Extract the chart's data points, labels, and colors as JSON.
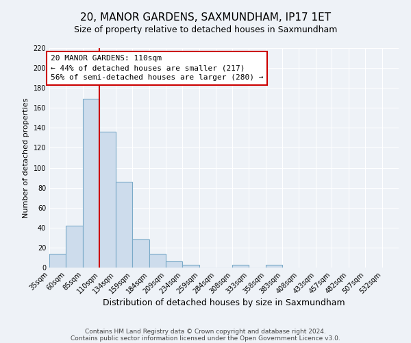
{
  "title": "20, MANOR GARDENS, SAXMUNDHAM, IP17 1ET",
  "subtitle": "Size of property relative to detached houses in Saxmundham",
  "xlabel": "Distribution of detached houses by size in Saxmundham",
  "ylabel": "Number of detached properties",
  "bar_values": [
    14,
    42,
    169,
    136,
    86,
    28,
    14,
    6,
    3,
    0,
    0,
    3,
    0,
    3
  ],
  "bin_edges_bars": [
    35,
    60,
    85,
    110,
    134,
    159,
    184,
    209,
    234,
    259,
    284,
    308,
    333,
    358
  ],
  "all_tick_positions": [
    35,
    60,
    85,
    110,
    134,
    159,
    184,
    209,
    234,
    259,
    284,
    308,
    333,
    358,
    383,
    408,
    433,
    457,
    482,
    507,
    532
  ],
  "tick_labels": [
    "35sqm",
    "60sqm",
    "85sqm",
    "110sqm",
    "134sqm",
    "159sqm",
    "184sqm",
    "209sqm",
    "234sqm",
    "259sqm",
    "284sqm",
    "308sqm",
    "333sqm",
    "358sqm",
    "383sqm",
    "408sqm",
    "433sqm",
    "457sqm",
    "482sqm",
    "507sqm",
    "532sqm"
  ],
  "bar_color": "#cddcec",
  "bar_edge_color": "#7aaac8",
  "vline_x": 110,
  "vline_color": "#cc0000",
  "annotation_title": "20 MANOR GARDENS: 110sqm",
  "annotation_line1": "← 44% of detached houses are smaller (217)",
  "annotation_line2": "56% of semi-detached houses are larger (280) →",
  "annotation_box_color": "#ffffff",
  "annotation_box_edge": "#cc0000",
  "ylim": [
    0,
    220
  ],
  "yticks": [
    0,
    20,
    40,
    60,
    80,
    100,
    120,
    140,
    160,
    180,
    200,
    220
  ],
  "footer1": "Contains HM Land Registry data © Crown copyright and database right 2024.",
  "footer2": "Contains public sector information licensed under the Open Government Licence v3.0.",
  "background_color": "#eef2f7",
  "plot_bg_color": "#eef2f7",
  "grid_color": "#ffffff",
  "title_fontsize": 11,
  "subtitle_fontsize": 9,
  "xlabel_fontsize": 9,
  "ylabel_fontsize": 8,
  "tick_fontsize": 7,
  "footer_fontsize": 6.5,
  "annot_fontsize": 8
}
